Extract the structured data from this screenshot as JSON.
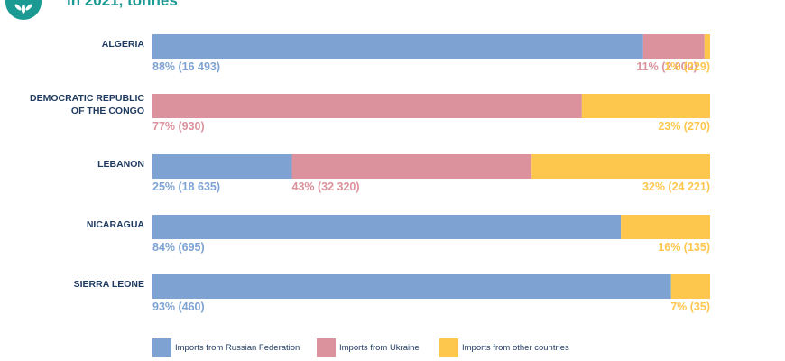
{
  "header": {
    "title": "in 2021, tonnes",
    "logo_icon": "leaf-wreath-icon"
  },
  "colors": {
    "russia": "#7ea3d2",
    "ukraine": "#db929c",
    "other": "#fdc74e",
    "category_text": "#1e3a5f",
    "title": "#1a9a92"
  },
  "chart_data": {
    "type": "bar",
    "orientation": "horizontal",
    "stacked": true,
    "percent_stacked": true,
    "title": "in 2021, tonnes",
    "categories": [
      "ALGERIA",
      "DEMOCRATIC REPUBLIC OF THE CONGO",
      "LEBANON",
      "NICARAGUA",
      "SIERRA LEONE"
    ],
    "category_lines": [
      [
        "ALGERIA"
      ],
      [
        "DEMOCRATIC REPUBLIC",
        "OF THE CONGO"
      ],
      [
        "LEBANON"
      ],
      [
        "NICARAGUA"
      ],
      [
        "SIERRA LEONE"
      ]
    ],
    "series": [
      {
        "name": "Imports from Russian Federation",
        "color_key": "russia",
        "percent": [
          88,
          0,
          25,
          84,
          93
        ],
        "tonnes": [
          16493,
          0,
          18635,
          695,
          460
        ],
        "labels": [
          "88% (16 493)",
          "",
          "25% (18 635)",
          "84% (695)",
          "93% (460)"
        ]
      },
      {
        "name": "Imports from Ukraine",
        "color_key": "ukraine",
        "percent": [
          11,
          77,
          43,
          0,
          0
        ],
        "tonnes": [
          2000,
          930,
          32320,
          0,
          0
        ],
        "labels": [
          "11% (2 000)",
          "77% (930)",
          "43% (32 320)",
          "",
          ""
        ]
      },
      {
        "name": "Imports from other countries",
        "color_key": "other",
        "percent": [
          1,
          23,
          32,
          16,
          7
        ],
        "tonnes": [
          229,
          270,
          24221,
          135,
          35
        ],
        "labels": [
          "1% (229)",
          "23% (270)",
          "32% (24 221)",
          "16% (135)",
          "7% (35)"
        ]
      }
    ],
    "xlim": [
      0,
      100
    ],
    "grid": false,
    "legend": "bottom"
  }
}
